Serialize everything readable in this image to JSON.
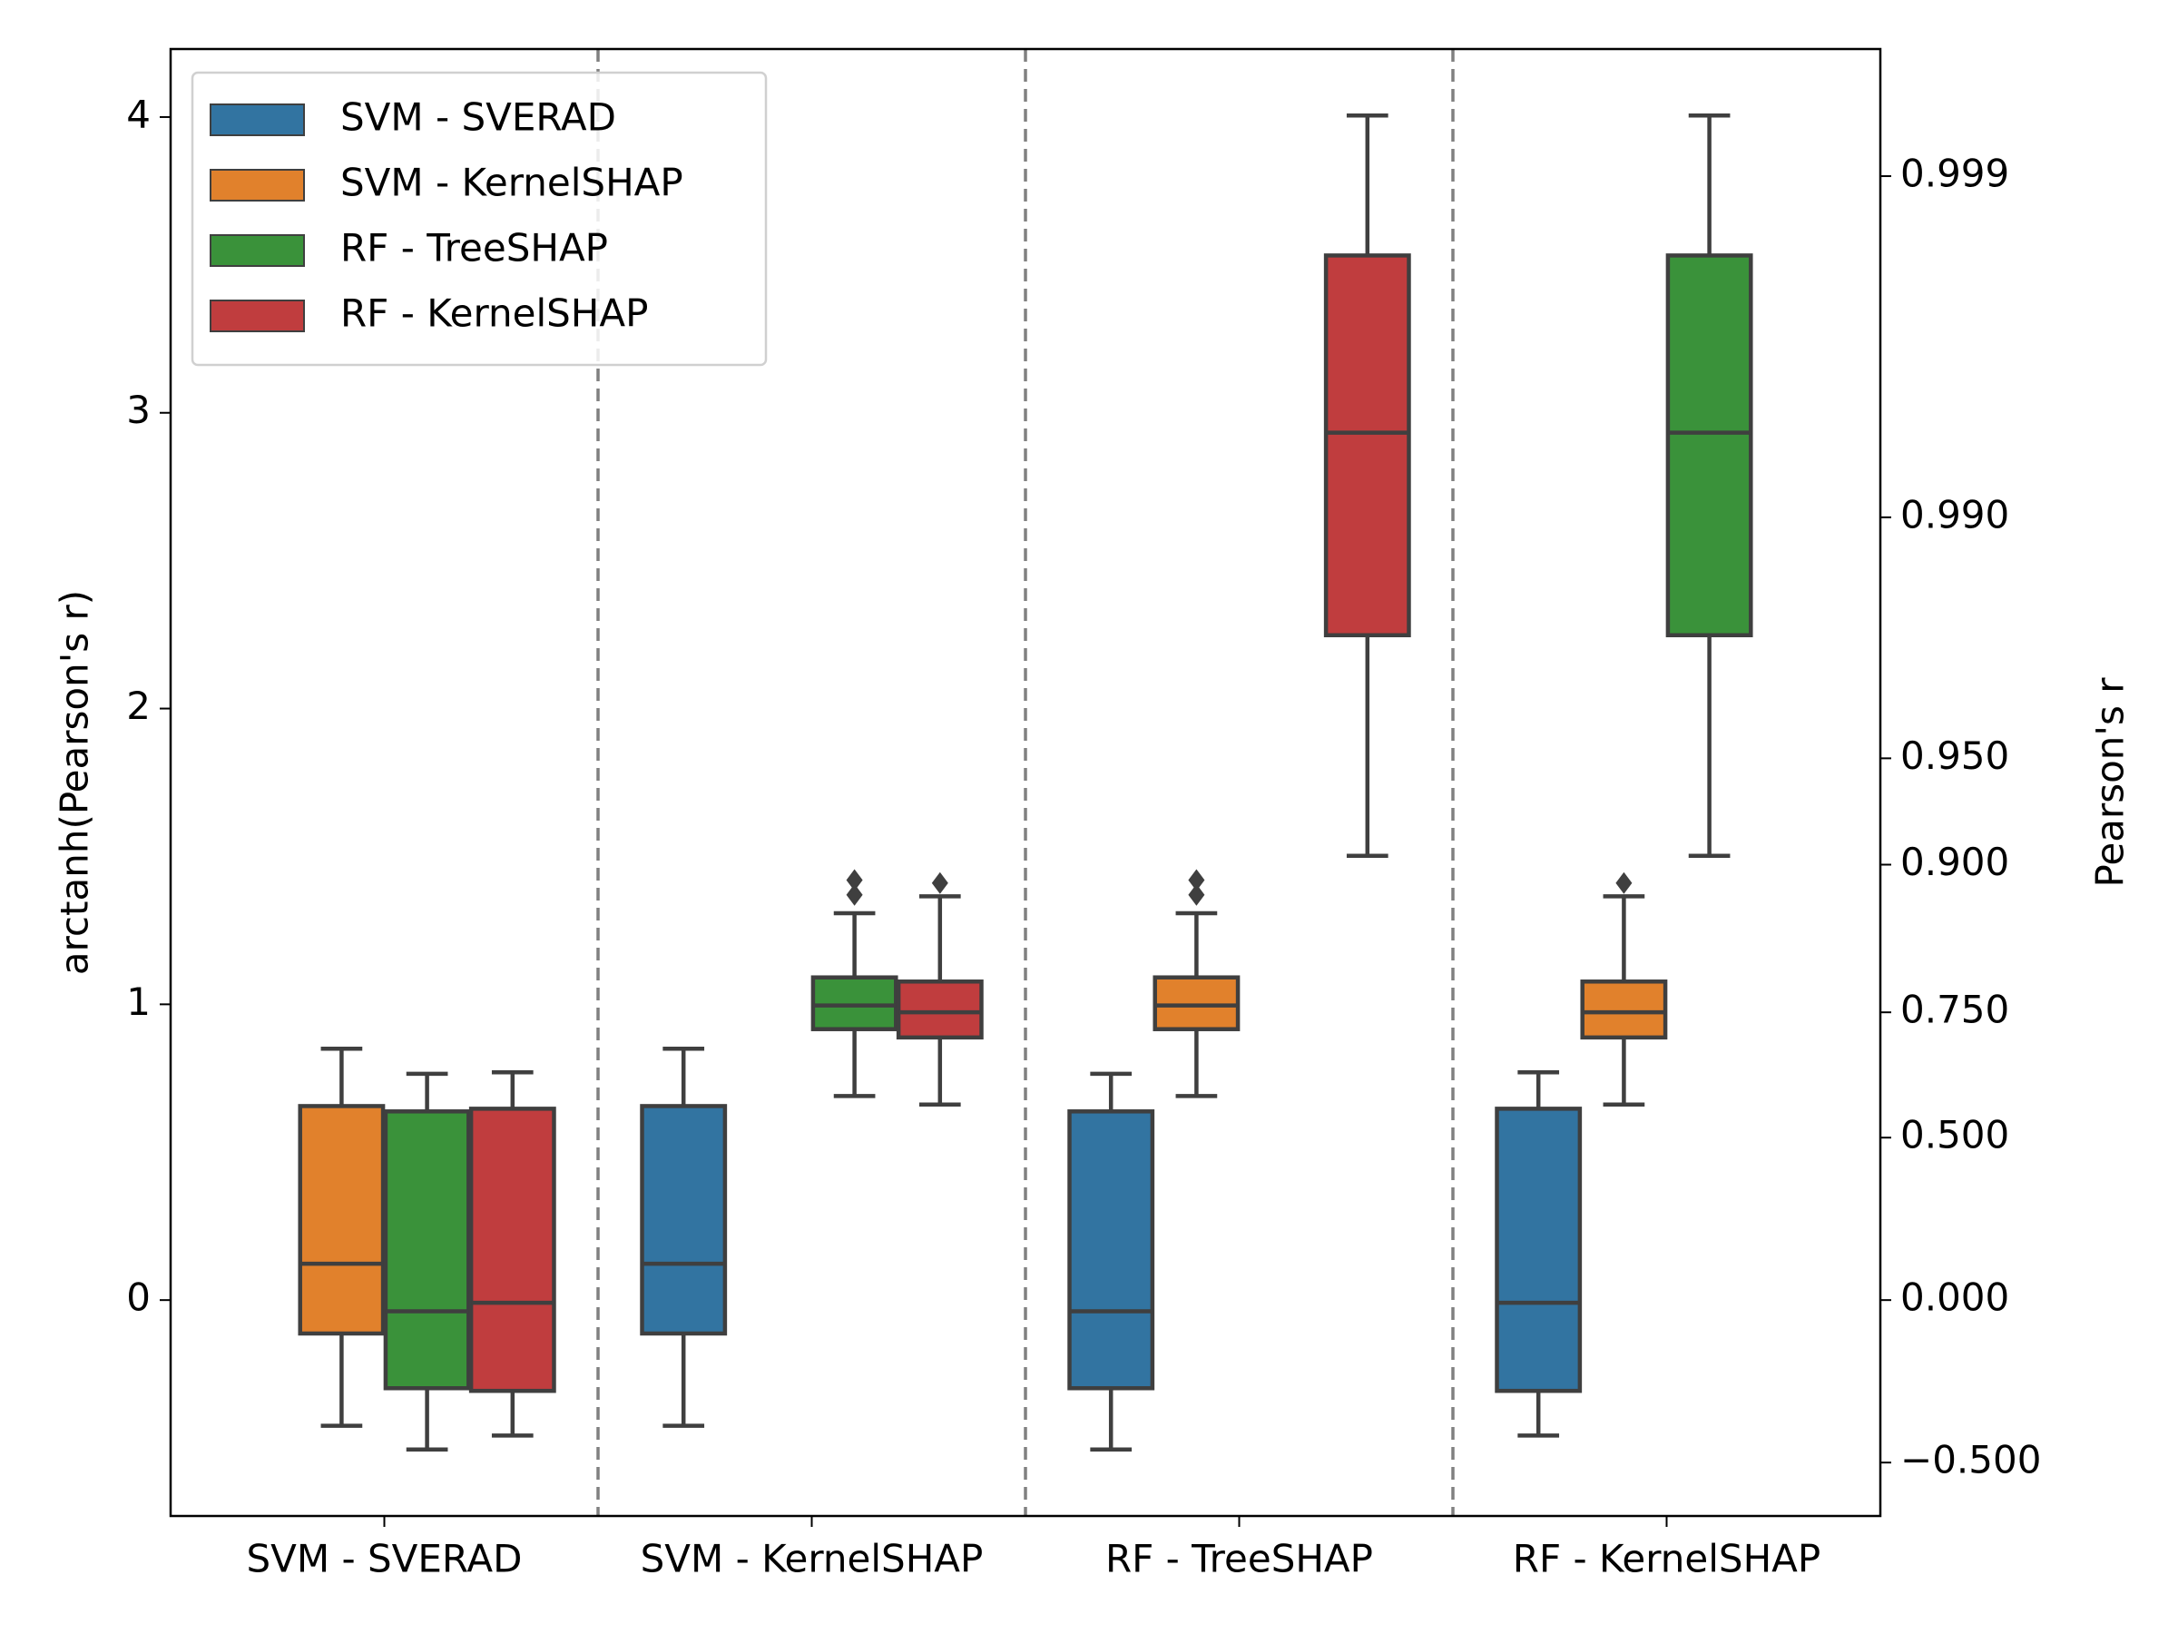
{
  "chart_data": {
    "type": "box",
    "categories": [
      "SVM - SVERAD",
      "SVM - KernelSHAP",
      "RF - TreeSHAP",
      "RF - KernelSHAP"
    ],
    "series": [
      {
        "name": "SVM - SVERAD",
        "color": "#3274a1",
        "values": [
          null,
          {
            "whislo": -0.425,
            "q1": -0.113,
            "med": 0.123,
            "q3": 0.656,
            "whishi": 0.85,
            "fliers": []
          },
          {
            "whislo": -0.505,
            "q1": -0.298,
            "med": -0.038,
            "q3": 0.638,
            "whishi": 0.765,
            "fliers": []
          },
          {
            "whislo": -0.458,
            "q1": -0.307,
            "med": -0.009,
            "q3": 0.647,
            "whishi": 0.77,
            "fliers": []
          }
        ]
      },
      {
        "name": "SVM - KernelSHAP",
        "color": "#e1812c",
        "values": [
          {
            "whislo": -0.425,
            "q1": -0.113,
            "med": 0.123,
            "q3": 0.656,
            "whishi": 0.85,
            "fliers": []
          },
          null,
          {
            "whislo": 0.69,
            "q1": 0.916,
            "med": 0.996,
            "q3": 1.091,
            "whishi": 1.308,
            "fliers": [
              1.37,
              1.42
            ]
          },
          {
            "whislo": 0.661,
            "q1": 0.888,
            "med": 0.973,
            "q3": 1.077,
            "whishi": 1.365,
            "fliers": [
              1.41
            ]
          }
        ]
      },
      {
        "name": "RF - TreeSHAP",
        "color": "#3a923a",
        "values": [
          {
            "whislo": -0.505,
            "q1": -0.298,
            "med": -0.038,
            "q3": 0.638,
            "whishi": 0.765,
            "fliers": []
          },
          {
            "whislo": 0.69,
            "q1": 0.916,
            "med": 0.996,
            "q3": 1.091,
            "whishi": 1.308,
            "fliers": [
              1.37,
              1.42
            ]
          },
          null,
          {
            "whislo": 1.502,
            "q1": 2.248,
            "med": 2.933,
            "q3": 3.532,
            "whishi": 4.005,
            "fliers": []
          }
        ]
      },
      {
        "name": "RF - KernelSHAP",
        "color": "#c03d3e",
        "values": [
          {
            "whislo": -0.458,
            "q1": -0.307,
            "med": -0.009,
            "q3": 0.647,
            "whishi": 0.77,
            "fliers": []
          },
          {
            "whislo": 0.661,
            "q1": 0.888,
            "med": 0.973,
            "q3": 1.077,
            "whishi": 1.365,
            "fliers": [
              1.41
            ]
          },
          {
            "whislo": 1.502,
            "q1": 2.248,
            "med": 2.933,
            "q3": 3.532,
            "whishi": 4.005,
            "fliers": []
          },
          null
        ]
      }
    ],
    "ylabel": "arctanh(Pearson's r)",
    "y2label": "Pearson's r",
    "ylim": [
      -0.73,
      4.23
    ],
    "yticks": [
      0,
      1,
      2,
      3,
      4
    ],
    "y2scale": "arctanh",
    "y2ticks": [
      {
        "value": -0.5,
        "label": "−0.500"
      },
      {
        "value": 0,
        "label": "0.000"
      },
      {
        "value": 0.5,
        "label": "0.500"
      },
      {
        "value": 0.75,
        "label": "0.750"
      },
      {
        "value": 0.9,
        "label": "0.900"
      },
      {
        "value": 0.95,
        "label": "0.950"
      },
      {
        "value": 0.99,
        "label": "0.990"
      },
      {
        "value": 0.999,
        "label": "0.999"
      }
    ],
    "legend": "upper left"
  }
}
